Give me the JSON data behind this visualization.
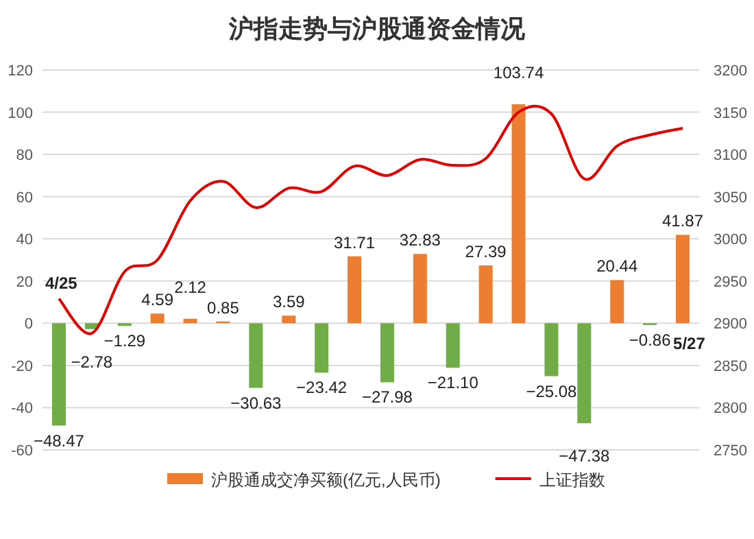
{
  "chart_data": {
    "type": "bar",
    "title": "沪指走势与沪股通资金情况",
    "categories": [
      null,
      null,
      null,
      null,
      null,
      null,
      null,
      null,
      null,
      null,
      null,
      null,
      null,
      null,
      null,
      null,
      null,
      null,
      null,
      null
    ],
    "series": [
      {
        "name": "沪股通成交净买额(亿元,人民币)",
        "color": "#ed7d31",
        "values": [
          -48.47,
          -2.78,
          -1.29,
          4.59,
          2.12,
          0.85,
          -30.63,
          3.59,
          -23.42,
          31.71,
          -27.98,
          32.83,
          -21.1,
          27.39,
          103.74,
          -25.08,
          -47.38,
          20.44,
          -0.86,
          41.87
        ],
        "value_labels": [
          "−48.47",
          "−2.78",
          "−1.29",
          "4.59",
          "2.12",
          "0.85",
          "−30.63",
          "3.59",
          "−23.42",
          "31.71",
          "−27.98",
          "32.83",
          "−21.10",
          "27.39",
          "103.74",
          "−25.08",
          "−47.38",
          "20.44",
          "−0.86",
          "41.87"
        ],
        "colors": [
          "#70ad47",
          "#70ad47",
          "#70ad47",
          "#ed7d31",
          "#ed7d31",
          "#ed7d31",
          "#70ad47",
          "#ed7d31",
          "#70ad47",
          "#ed7d31",
          "#70ad47",
          "#ed7d31",
          "#70ad47",
          "#ed7d31",
          "#ed7d31",
          "#70ad47",
          "#70ad47",
          "#ed7d31",
          "#70ad47",
          "#ed7d31"
        ]
      },
      {
        "name": "上证指数",
        "type": "line",
        "axis": "y2",
        "color": "#e00000",
        "values": [
          2929,
          2888,
          2961,
          2975,
          3045,
          3068,
          3037,
          3060,
          3056,
          3086,
          3075,
          3094,
          3087,
          3095,
          3150,
          3148,
          3071,
          3110,
          3123,
          3131
        ]
      }
    ],
    "ylim": [
      -60,
      120
    ],
    "yticks": [
      -60,
      -40,
      -20,
      0,
      20,
      40,
      60,
      80,
      100,
      120
    ],
    "y2lim": [
      2750,
      3200
    ],
    "y2ticks": [
      2750,
      2800,
      2850,
      2900,
      2950,
      3000,
      3050,
      3100,
      3150,
      3200
    ],
    "grid": "y",
    "legend": "bottom",
    "annotations": [
      "4/25",
      "5/27"
    ]
  }
}
